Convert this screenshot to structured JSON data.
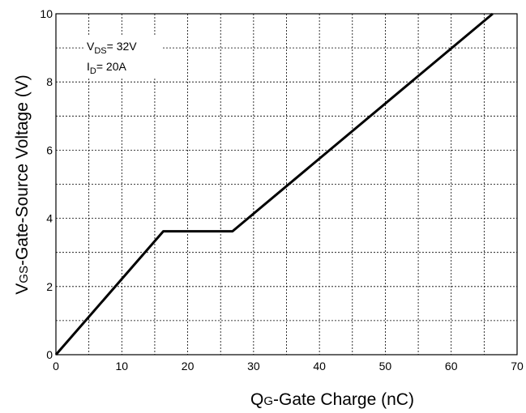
{
  "chart_data": {
    "type": "line",
    "xlabel": {
      "prefix": "Q",
      "subscript": "G",
      "rest": "-Gate Charge (nC)"
    },
    "ylabel": {
      "prefix": "V",
      "subscript": "GS",
      "rest": "-Gate-Source Voltage (V)"
    },
    "xlim": [
      0,
      70
    ],
    "ylim": [
      0,
      10
    ],
    "xticks": [
      0,
      10,
      20,
      30,
      40,
      50,
      60,
      70
    ],
    "yticks": [
      0,
      2,
      4,
      6,
      8,
      10
    ],
    "xtick_labels": [
      "0",
      "10",
      "20",
      "30",
      "40",
      "50",
      "60",
      "70"
    ],
    "ytick_labels": [
      "0",
      "2",
      "4",
      "6",
      "8",
      "10"
    ],
    "grid": true,
    "grid_minor_x": [
      5,
      15,
      25,
      35,
      45,
      55,
      65
    ],
    "grid_minor_y": [
      1,
      3,
      5,
      7,
      9
    ],
    "line_color": "#000000",
    "annotations": [
      {
        "main": "V",
        "sub": "DS",
        "rest": "= 32V"
      },
      {
        "main": "I",
        "sub": "D",
        "rest": "= 20A"
      }
    ],
    "series": [
      {
        "x": [
          0,
          16.3,
          26.8,
          66.3
        ],
        "y": [
          0,
          3.62,
          3.62,
          10
        ]
      }
    ]
  }
}
